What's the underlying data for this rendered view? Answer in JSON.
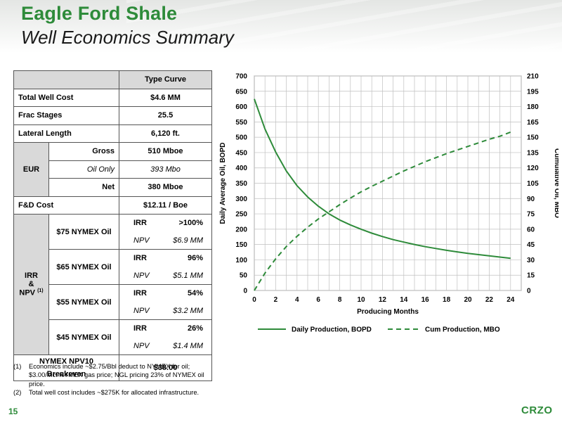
{
  "slide": {
    "title": "Eagle Ford Shale",
    "subtitle": "Well Economics Summary",
    "page_number": "15",
    "logo_text": "CRZO",
    "accent_color": "#2e8b3a"
  },
  "table": {
    "header": "Type Curve",
    "total_well_cost_label": "Total Well Cost",
    "total_well_cost": "$4.6 MM",
    "frac_stages_label": "Frac Stages",
    "frac_stages": "25.5",
    "lateral_length_label": "Lateral Length",
    "lateral_length": "6,120 ft.",
    "eur_label": "EUR",
    "eur_gross_label": "Gross",
    "eur_gross": "510 Mboe",
    "eur_oil_label": "Oil Only",
    "eur_oil": "393 Mbo",
    "eur_net_label": "Net",
    "eur_net": "380 Mboe",
    "fd_cost_label": "F&D Cost",
    "fd_cost": "$12.11 / Boe",
    "irr_label_1": "IRR",
    "irr_label_2": "&",
    "irr_label_3": "NPV",
    "irr_label_sup": "(1)",
    "irr_text": "IRR",
    "npv_text": "NPV",
    "scenarios": [
      {
        "name": "$75 NYMEX Oil",
        "irr": ">100%",
        "npv": "$6.9 MM"
      },
      {
        "name": "$65 NYMEX Oil",
        "irr": "96%",
        "npv": "$5.1 MM"
      },
      {
        "name": "$55 NYMEX Oil",
        "irr": "54%",
        "npv": "$3.2 MM"
      },
      {
        "name": "$45 NYMEX Oil",
        "irr": "26%",
        "npv": "$1.4 MM"
      }
    ],
    "breakeven_label_1": "NYMEX NPV10",
    "breakeven_label_2": "Breakeven",
    "breakeven": "$38.00"
  },
  "footnotes": [
    {
      "num": "(1)",
      "text": "Economics include ~$2.75/Bbl deduct to NYMEX for oil; $3.00/Mcf NYMEX gas price; NGL pricing 23% of NYMEX oil price."
    },
    {
      "num": "(2)",
      "text": "Total well cost includes ~$275K for allocated infrastructure."
    }
  ],
  "chart_data": {
    "type": "line",
    "xlabel": "Producing Months",
    "ylabel_left": "Daily Average Oil, BOPD",
    "ylabel_right": "Cumulative Oil, MBO",
    "xlim": [
      0,
      25
    ],
    "x_ticks": [
      0,
      2,
      4,
      6,
      8,
      10,
      12,
      14,
      16,
      18,
      20,
      22,
      24
    ],
    "ylim_left": [
      0,
      700
    ],
    "y_ticks_left": [
      0,
      50,
      100,
      150,
      200,
      250,
      300,
      350,
      400,
      450,
      500,
      550,
      600,
      650,
      700
    ],
    "ylim_right": [
      0,
      210
    ],
    "y_ticks_right": [
      0,
      15,
      30,
      45,
      60,
      75,
      90,
      105,
      120,
      135,
      150,
      165,
      180,
      195,
      210
    ],
    "grid": true,
    "legend_position": "bottom",
    "series": [
      {
        "name": "Daily Production, BOPD",
        "axis": "left",
        "style": "solid",
        "color": "#2e8b3a",
        "x": [
          0,
          1,
          2,
          3,
          4,
          5,
          6,
          7,
          8,
          9,
          10,
          11,
          12,
          13,
          14,
          15,
          16,
          17,
          18,
          19,
          20,
          21,
          22,
          23,
          24
        ],
        "y": [
          625,
          527,
          452,
          390,
          342,
          305,
          275,
          250,
          230,
          214,
          200,
          187,
          176,
          166,
          158,
          150,
          143,
          137,
          131,
          126,
          121,
          117,
          113,
          109,
          105
        ]
      },
      {
        "name": "Cum Production, MBO",
        "axis": "right",
        "style": "dashed",
        "color": "#2e8b3a",
        "x": [
          0,
          1,
          2,
          3,
          4,
          5,
          6,
          7,
          8,
          9,
          10,
          11,
          12,
          13,
          14,
          15,
          16,
          17,
          18,
          19,
          20,
          21,
          22,
          23,
          24
        ],
        "y": [
          0,
          17,
          31,
          43,
          53,
          62,
          70,
          77,
          84,
          90.5,
          96.5,
          102,
          107,
          112,
          117,
          121.5,
          126,
          130,
          134,
          137.5,
          141,
          144.5,
          148,
          151,
          155
        ]
      }
    ]
  }
}
